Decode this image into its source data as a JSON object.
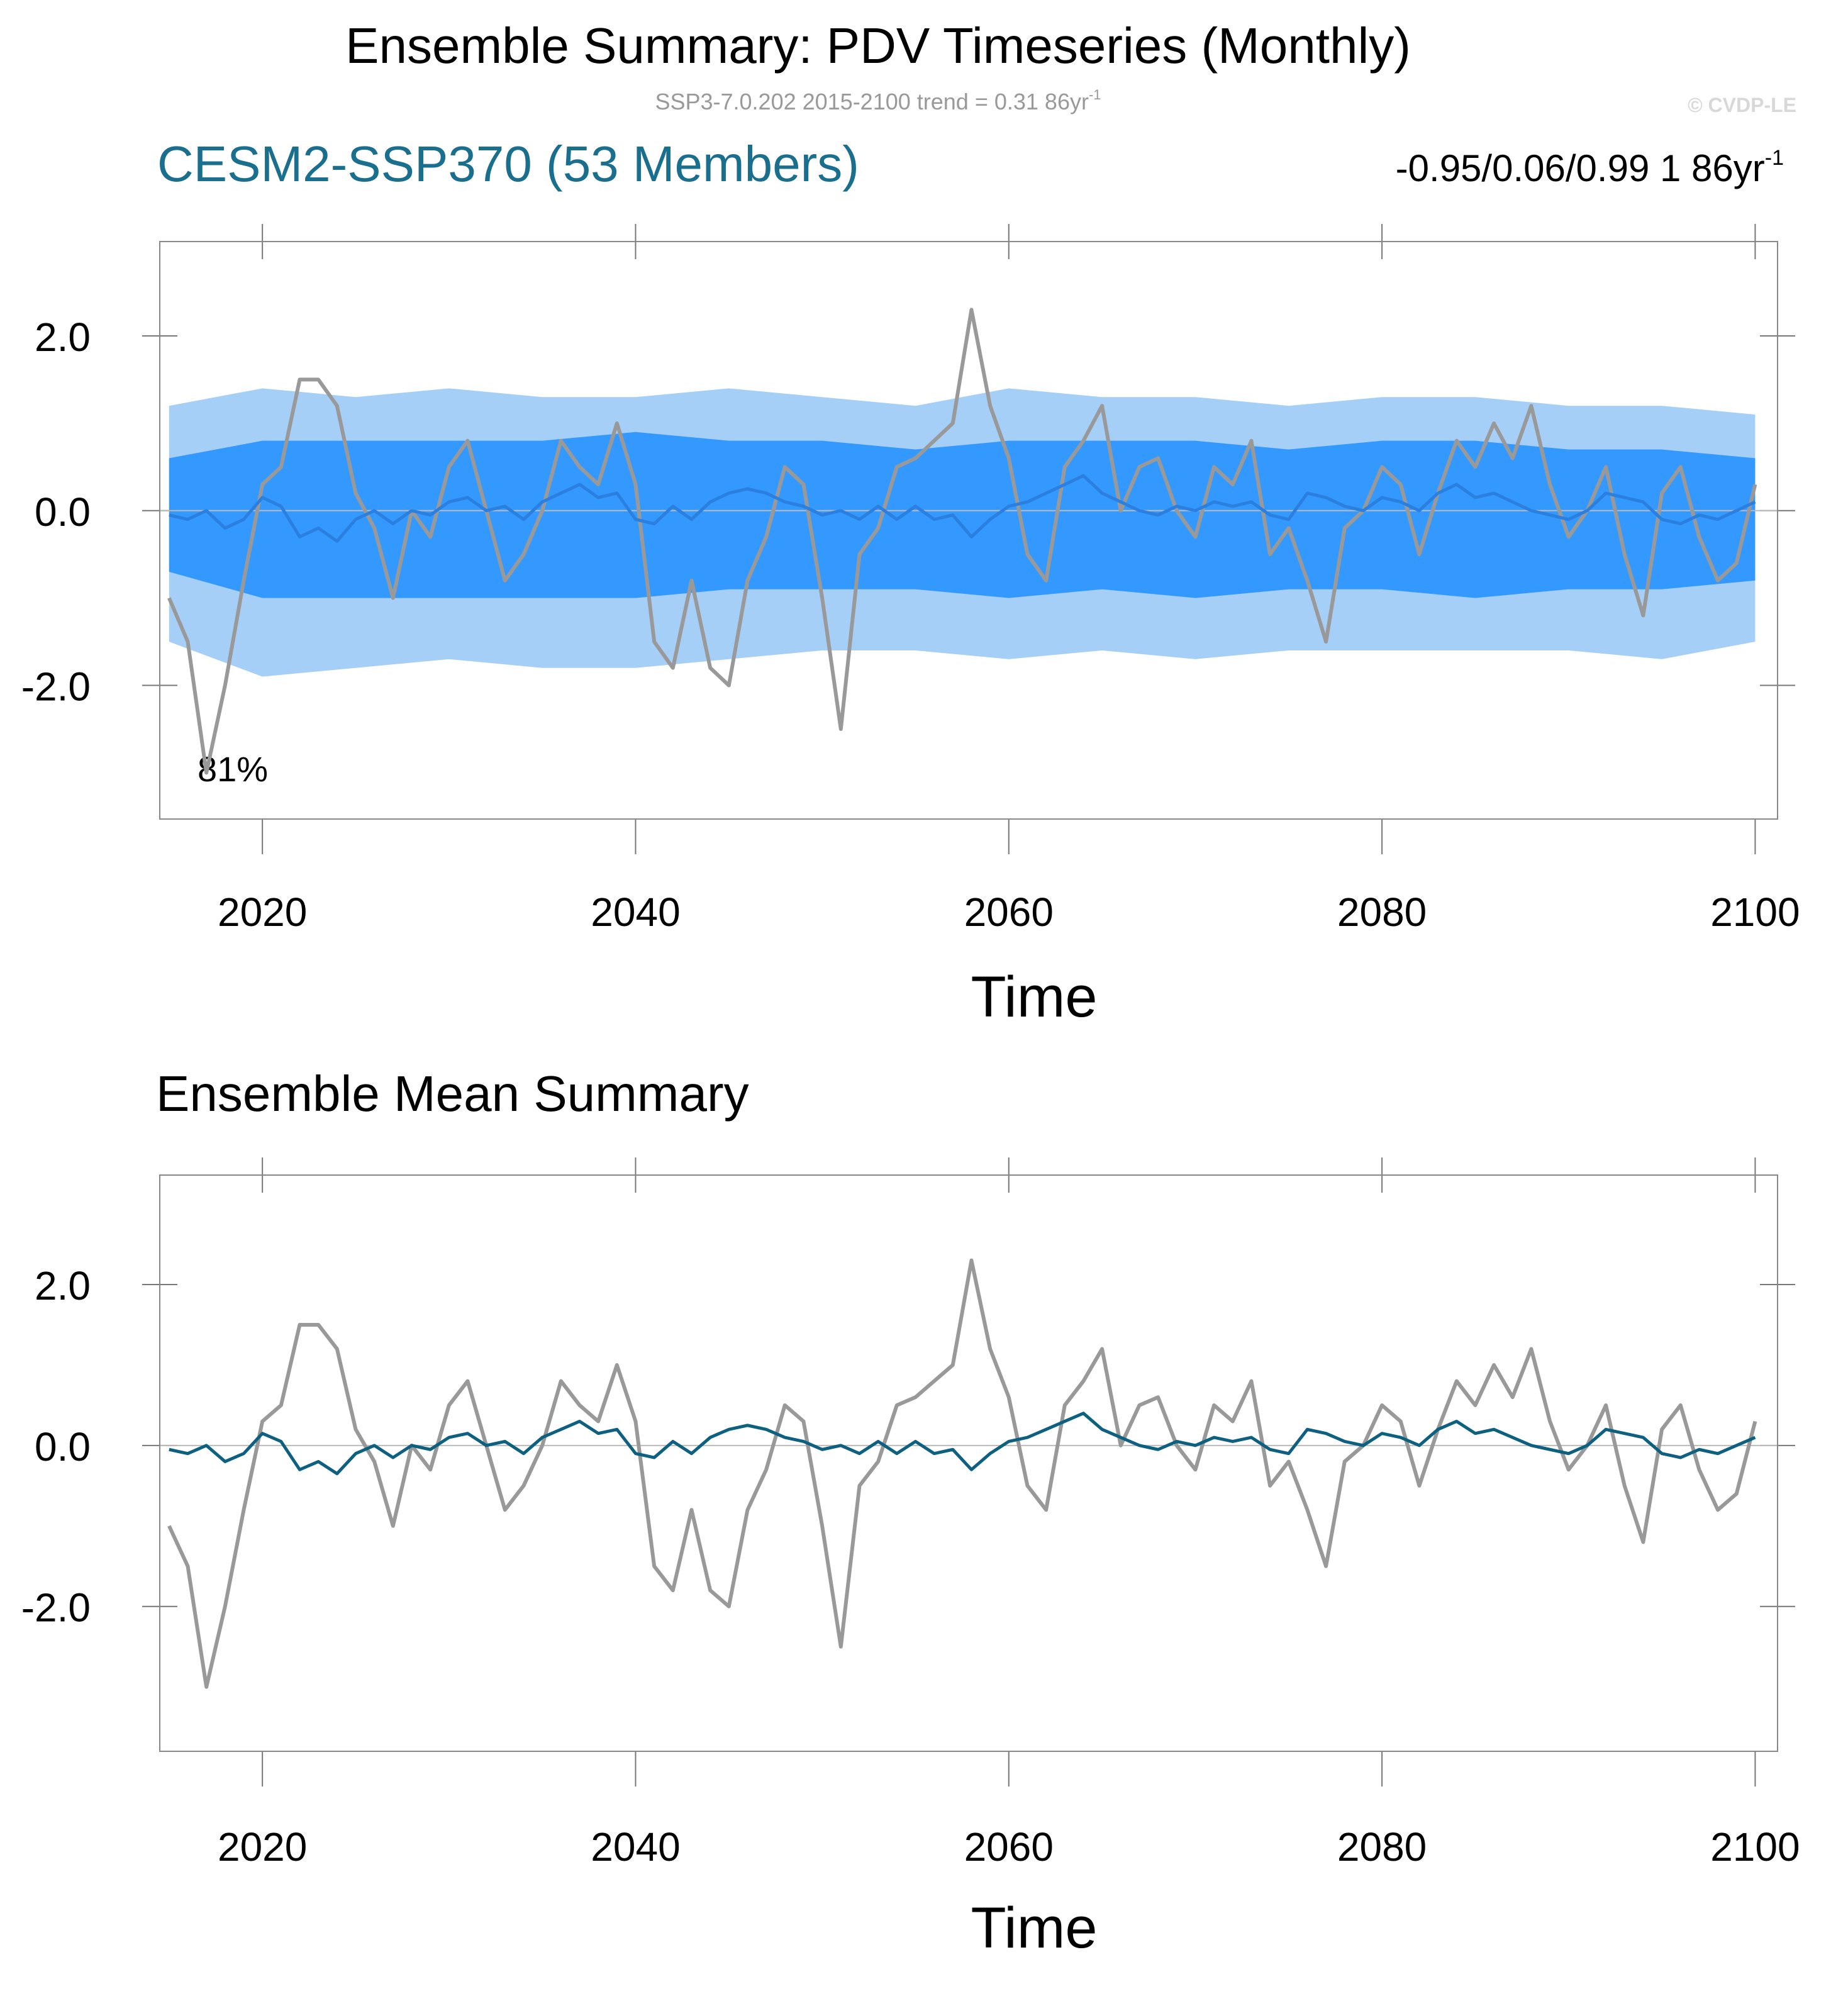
{
  "chart_data": [
    {
      "type": "band",
      "title": "Ensemble Summary: PDV Timeseries (Monthly)",
      "subtitle": "SSP3-7.0.202 2015-2100 trend = 0.31 86yr",
      "subtitle_superscript": "-1",
      "credit": "© CVDP-LE",
      "left_title": "CESM2-SSP370 (53 Members)",
      "stats": "-0.95/0.06/0.99 1 86yr",
      "stats_superscript": "-1",
      "annotation": "81%",
      "x_label": "Time",
      "xlim": [
        2014.5,
        2101.2
      ],
      "xticks": [
        2020,
        2040,
        2060,
        2080,
        2100
      ],
      "ylim": [
        -3.53,
        3.08
      ],
      "yticks": [
        {
          "value": -2,
          "label": "-2.0"
        },
        {
          "value": 0,
          "label": "0.0"
        },
        {
          "value": 2,
          "label": "2.0"
        }
      ],
      "band_x": [
        2015,
        2020,
        2025,
        2030,
        2035,
        2040,
        2045,
        2050,
        2055,
        2060,
        2065,
        2070,
        2075,
        2080,
        2085,
        2090,
        2095,
        2100
      ],
      "bands": [
        {
          "color": "#a6cff8",
          "upper": [
            1.2,
            1.4,
            1.3,
            1.4,
            1.3,
            1.3,
            1.4,
            1.3,
            1.2,
            1.4,
            1.3,
            1.3,
            1.2,
            1.3,
            1.3,
            1.2,
            1.2,
            1.1
          ],
          "lower": [
            -1.5,
            -1.9,
            -1.8,
            -1.7,
            -1.8,
            -1.8,
            -1.7,
            -1.6,
            -1.6,
            -1.7,
            -1.6,
            -1.7,
            -1.6,
            -1.6,
            -1.6,
            -1.6,
            -1.7,
            -1.5
          ]
        },
        {
          "color": "#3399ff",
          "upper": [
            0.6,
            0.8,
            0.8,
            0.8,
            0.8,
            0.9,
            0.8,
            0.8,
            0.7,
            0.8,
            0.8,
            0.8,
            0.7,
            0.8,
            0.8,
            0.7,
            0.7,
            0.6
          ],
          "lower": [
            -0.7,
            -1.0,
            -1.0,
            -1.0,
            -1.0,
            -1.0,
            -0.9,
            -0.9,
            -0.9,
            -1.0,
            -0.9,
            -1.0,
            -0.9,
            -0.9,
            -1.0,
            -0.9,
            -0.9,
            -0.8
          ]
        }
      ],
      "x": [
        2015,
        2016,
        2017,
        2018,
        2019,
        2020,
        2021,
        2022,
        2023,
        2024,
        2025,
        2026,
        2027,
        2028,
        2029,
        2030,
        2031,
        2032,
        2033,
        2034,
        2035,
        2036,
        2037,
        2038,
        2039,
        2040,
        2041,
        2042,
        2043,
        2044,
        2045,
        2046,
        2047,
        2048,
        2049,
        2050,
        2051,
        2052,
        2053,
        2054,
        2055,
        2056,
        2057,
        2058,
        2059,
        2060,
        2061,
        2062,
        2063,
        2064,
        2065,
        2066,
        2067,
        2068,
        2069,
        2070,
        2071,
        2072,
        2073,
        2074,
        2075,
        2076,
        2077,
        2078,
        2079,
        2080,
        2081,
        2082,
        2083,
        2084,
        2085,
        2086,
        2087,
        2088,
        2089,
        2090,
        2091,
        2092,
        2093,
        2094,
        2095,
        2096,
        2097,
        2098,
        2099,
        2100
      ],
      "series": [
        {
          "color": "#999999",
          "values": [
            -1.0,
            -1.5,
            -3.0,
            -2.0,
            -0.8,
            0.3,
            0.5,
            1.5,
            1.5,
            1.2,
            0.2,
            -0.2,
            -1.0,
            0.0,
            -0.3,
            0.5,
            0.8,
            0.0,
            -0.8,
            -0.5,
            0.0,
            0.8,
            0.5,
            0.3,
            1.0,
            0.3,
            -1.5,
            -1.8,
            -0.8,
            -1.8,
            -2.0,
            -0.8,
            -0.3,
            0.5,
            0.3,
            -1.0,
            -2.5,
            -0.5,
            -0.2,
            0.5,
            0.6,
            0.8,
            1.0,
            2.3,
            1.2,
            0.6,
            -0.5,
            -0.8,
            0.5,
            0.8,
            1.2,
            0.0,
            0.5,
            0.6,
            0.0,
            -0.3,
            0.5,
            0.3,
            0.8,
            -0.5,
            -0.2,
            -0.8,
            -1.5,
            -0.2,
            0.0,
            0.5,
            0.3,
            -0.5,
            0.2,
            0.8,
            0.5,
            1.0,
            0.6,
            1.2,
            0.3,
            -0.3,
            0.0,
            0.5,
            -0.5,
            -1.2,
            0.2,
            0.5,
            -0.3,
            -0.8,
            -0.6,
            0.3
          ]
        },
        {
          "color": "#2a7fdf",
          "values": [
            -0.05,
            -0.1,
            0.0,
            -0.2,
            -0.1,
            0.15,
            0.05,
            -0.3,
            -0.2,
            -0.35,
            -0.1,
            0.0,
            -0.15,
            0.0,
            -0.05,
            0.1,
            0.15,
            0.0,
            0.05,
            -0.1,
            0.1,
            0.2,
            0.3,
            0.15,
            0.2,
            -0.1,
            -0.15,
            0.05,
            -0.1,
            0.1,
            0.2,
            0.25,
            0.2,
            0.1,
            0.05,
            -0.05,
            0.0,
            -0.1,
            0.05,
            -0.1,
            0.05,
            -0.1,
            -0.05,
            -0.3,
            -0.1,
            0.05,
            0.1,
            0.2,
            0.3,
            0.4,
            0.2,
            0.1,
            0.0,
            -0.05,
            0.05,
            0.0,
            0.1,
            0.05,
            0.1,
            -0.05,
            -0.1,
            0.2,
            0.15,
            0.05,
            0.0,
            0.15,
            0.1,
            0.0,
            0.2,
            0.3,
            0.15,
            0.2,
            0.1,
            0.0,
            -0.05,
            -0.1,
            0.0,
            0.2,
            0.15,
            0.1,
            -0.1,
            -0.15,
            -0.05,
            -0.1,
            0.0,
            0.1
          ]
        }
      ]
    },
    {
      "type": "line",
      "title": "Ensemble Mean Summary",
      "x_label": "Time",
      "xlim": [
        2014.5,
        2101.2
      ],
      "xticks": [
        2020,
        2040,
        2060,
        2080,
        2100
      ],
      "ylim": [
        -3.8,
        3.36
      ],
      "yticks": [
        {
          "value": -2,
          "label": "-2.0"
        },
        {
          "value": 0,
          "label": "0.0"
        },
        {
          "value": 2,
          "label": "2.0"
        }
      ],
      "x": [
        2015,
        2016,
        2017,
        2018,
        2019,
        2020,
        2021,
        2022,
        2023,
        2024,
        2025,
        2026,
        2027,
        2028,
        2029,
        2030,
        2031,
        2032,
        2033,
        2034,
        2035,
        2036,
        2037,
        2038,
        2039,
        2040,
        2041,
        2042,
        2043,
        2044,
        2045,
        2046,
        2047,
        2048,
        2049,
        2050,
        2051,
        2052,
        2053,
        2054,
        2055,
        2056,
        2057,
        2058,
        2059,
        2060,
        2061,
        2062,
        2063,
        2064,
        2065,
        2066,
        2067,
        2068,
        2069,
        2070,
        2071,
        2072,
        2073,
        2074,
        2075,
        2076,
        2077,
        2078,
        2079,
        2080,
        2081,
        2082,
        2083,
        2084,
        2085,
        2086,
        2087,
        2088,
        2089,
        2090,
        2091,
        2092,
        2093,
        2094,
        2095,
        2096,
        2097,
        2098,
        2099,
        2100
      ],
      "series": [
        {
          "color": "#999999",
          "values": [
            -1.0,
            -1.5,
            -3.0,
            -2.0,
            -0.8,
            0.3,
            0.5,
            1.5,
            1.5,
            1.2,
            0.2,
            -0.2,
            -1.0,
            0.0,
            -0.3,
            0.5,
            0.8,
            0.0,
            -0.8,
            -0.5,
            0.0,
            0.8,
            0.5,
            0.3,
            1.0,
            0.3,
            -1.5,
            -1.8,
            -0.8,
            -1.8,
            -2.0,
            -0.8,
            -0.3,
            0.5,
            0.3,
            -1.0,
            -2.5,
            -0.5,
            -0.2,
            0.5,
            0.6,
            0.8,
            1.0,
            2.3,
            1.2,
            0.6,
            -0.5,
            -0.8,
            0.5,
            0.8,
            1.2,
            0.0,
            0.5,
            0.6,
            0.0,
            -0.3,
            0.5,
            0.3,
            0.8,
            -0.5,
            -0.2,
            -0.8,
            -1.5,
            -0.2,
            0.0,
            0.5,
            0.3,
            -0.5,
            0.2,
            0.8,
            0.5,
            1.0,
            0.6,
            1.2,
            0.3,
            -0.3,
            0.0,
            0.5,
            -0.5,
            -1.2,
            0.2,
            0.5,
            -0.3,
            -0.8,
            -0.6,
            0.3
          ]
        },
        {
          "color": "#0e6080",
          "values": [
            -0.05,
            -0.1,
            0.0,
            -0.2,
            -0.1,
            0.15,
            0.05,
            -0.3,
            -0.2,
            -0.35,
            -0.1,
            0.0,
            -0.15,
            0.0,
            -0.05,
            0.1,
            0.15,
            0.0,
            0.05,
            -0.1,
            0.1,
            0.2,
            0.3,
            0.15,
            0.2,
            -0.1,
            -0.15,
            0.05,
            -0.1,
            0.1,
            0.2,
            0.25,
            0.2,
            0.1,
            0.05,
            -0.05,
            0.0,
            -0.1,
            0.05,
            -0.1,
            0.05,
            -0.1,
            -0.05,
            -0.3,
            -0.1,
            0.05,
            0.1,
            0.2,
            0.3,
            0.4,
            0.2,
            0.1,
            0.0,
            -0.05,
            0.05,
            0.0,
            0.1,
            0.05,
            0.1,
            -0.05,
            -0.1,
            0.2,
            0.15,
            0.05,
            0.0,
            0.15,
            0.1,
            0.0,
            0.2,
            0.3,
            0.15,
            0.2,
            0.1,
            0.0,
            -0.05,
            -0.1,
            0.0,
            0.2,
            0.15,
            0.1,
            -0.1,
            -0.15,
            -0.05,
            -0.1,
            0.0,
            0.1
          ]
        }
      ]
    }
  ]
}
